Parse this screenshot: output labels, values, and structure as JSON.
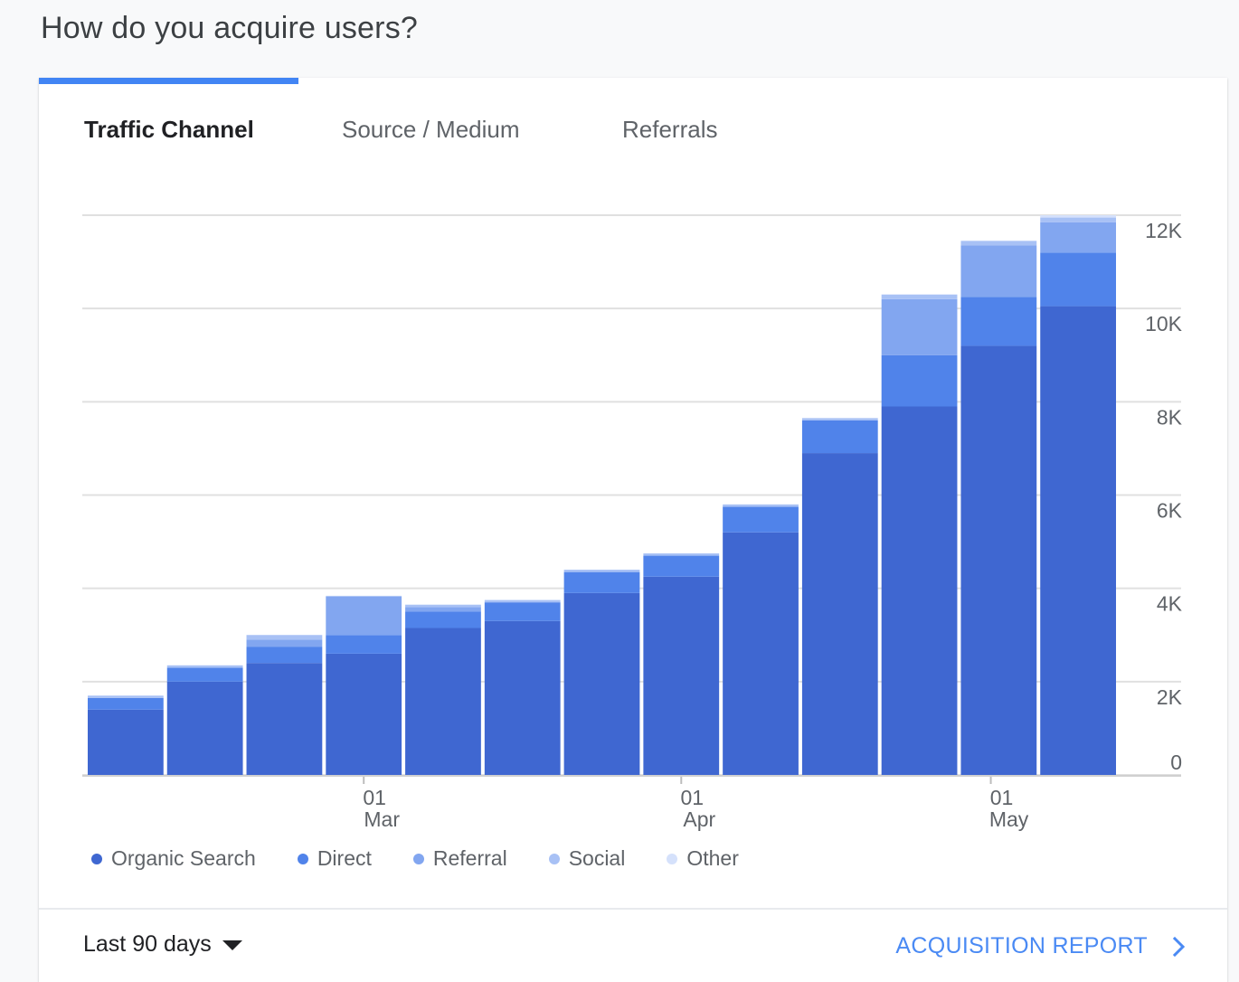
{
  "header": {
    "title": "How do you acquire users?"
  },
  "tabs": [
    {
      "label": "Traffic Channel",
      "active": true
    },
    {
      "label": "Source / Medium",
      "active": false
    },
    {
      "label": "Referrals",
      "active": false
    }
  ],
  "colors": {
    "organic": "#3f67d1",
    "direct": "#5083ea",
    "referral": "#82a6f0",
    "social": "#a8c1f5",
    "other": "#d5e1fb",
    "grid": "#e0e0e0",
    "link": "#4a8af4"
  },
  "footer": {
    "date_range": "Last 90 days",
    "report_link": "ACQUISITION REPORT"
  },
  "chart_data": {
    "type": "bar",
    "stacked": true,
    "ylim": [
      0,
      12000
    ],
    "yticks": [
      0,
      2000,
      4000,
      6000,
      8000,
      10000,
      12000
    ],
    "ytick_labels": [
      "0",
      "2K",
      "4K",
      "6K",
      "8K",
      "10K",
      "12K"
    ],
    "x_axis_labels": [
      {
        "bar_index": 3.5,
        "day": "01",
        "month": "Mar"
      },
      {
        "bar_index": 7.5,
        "day": "01",
        "month": "Apr"
      },
      {
        "bar_index": 11.4,
        "day": "01",
        "month": "May"
      }
    ],
    "grid": true,
    "legend_position": "bottom-left",
    "bar_count": 13,
    "series": [
      {
        "name": "Organic Search",
        "values": [
          1400,
          2000,
          2400,
          2600,
          3150,
          3300,
          3900,
          4250,
          5200,
          6900,
          7900,
          9200,
          10050
        ]
      },
      {
        "name": "Direct",
        "values": [
          250,
          300,
          350,
          400,
          350,
          400,
          450,
          450,
          550,
          700,
          1100,
          1050,
          1150
        ]
      },
      {
        "name": "Referral",
        "values": [
          0,
          0,
          150,
          820,
          100,
          0,
          0,
          0,
          0,
          0,
          1200,
          1100,
          650
        ]
      },
      {
        "name": "Social",
        "values": [
          50,
          50,
          100,
          20,
          50,
          50,
          50,
          50,
          50,
          50,
          100,
          100,
          100
        ]
      },
      {
        "name": "Other",
        "values": [
          0,
          0,
          0,
          0,
          0,
          0,
          0,
          0,
          0,
          0,
          0,
          0,
          50
        ]
      }
    ]
  }
}
